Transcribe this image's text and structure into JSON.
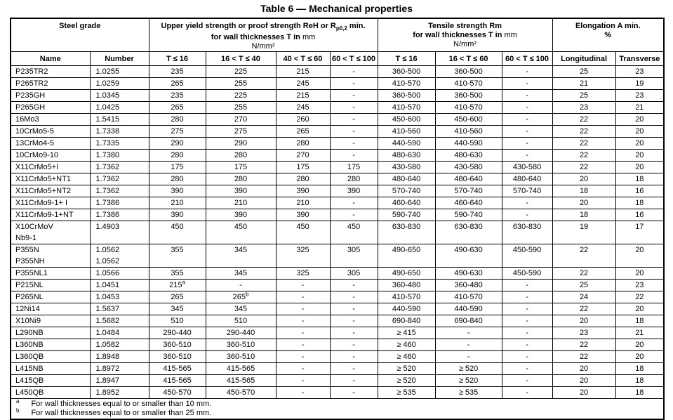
{
  "title": "Table 6 — Mechanical properties",
  "colors": {
    "border": "#000000",
    "text": "#000000",
    "background": "#ffffff"
  },
  "table": {
    "header": {
      "steel_grade": "Steel grade",
      "yield": {
        "line1_pre": "Upper yield strength or proof strength ReH or R",
        "line1_sub": "p0,2",
        "line1_post": " min.",
        "line2_main": "for wall thicknesses T in ",
        "line2_unit": "mm",
        "line3": "N/mm²"
      },
      "tensile": {
        "line1": "Tensile strength Rm",
        "line2_main": "for wall thicknesses T in ",
        "line2_unit": "mm",
        "line3": "N/mm²"
      },
      "elongation": {
        "line1": "Elongation A min.",
        "line2": "%"
      },
      "subheaders": [
        "Name",
        "Number",
        "T ≤ 16",
        "16 < T ≤ 40",
        "40 < T ≤ 60",
        "60 < T ≤ 100",
        "T ≤ 16",
        "16 < T ≤ 60",
        "60 < T ≤ 100",
        "Longitudinal",
        "Transverse"
      ]
    },
    "rows": [
      {
        "name": "P235TR2",
        "number": "1.0255",
        "cells": [
          "235",
          "225",
          "215",
          "-",
          "360-500",
          "360-500",
          "-",
          "25",
          "23"
        ]
      },
      {
        "name": "P265TR2",
        "number": "1.0259",
        "cells": [
          "265",
          "255",
          "245",
          "-",
          "410-570",
          "410-570",
          "-",
          "21",
          "19"
        ]
      },
      {
        "name": "P235GH",
        "number": "1.0345",
        "cells": [
          "235",
          "225",
          "215",
          "-",
          "360-500",
          "360-500",
          "-",
          "25",
          "23"
        ]
      },
      {
        "name": "P265GH",
        "number": "1.0425",
        "cells": [
          "265",
          "255",
          "245",
          "-",
          "410-570",
          "410-570",
          "-",
          "23",
          "21"
        ]
      },
      {
        "name": "16Mo3",
        "number": "1.5415",
        "cells": [
          "280",
          "270",
          "260",
          "-",
          "450-600",
          "450-600",
          "-",
          "22",
          "20"
        ]
      },
      {
        "name": "10CrMo5-5",
        "number": "1.7338",
        "cells": [
          "275",
          "275",
          "265",
          "-",
          "410-560",
          "410-560",
          "-",
          "22",
          "20"
        ]
      },
      {
        "name": "13CrMo4-5",
        "number": "1.7335",
        "cells": [
          "290",
          "290",
          "280",
          "-",
          "440-590",
          "440-590",
          "-",
          "22",
          "20"
        ]
      },
      {
        "name": "10CrMo9-10",
        "number": "1.7380",
        "cells": [
          "280",
          "280",
          "270",
          "-",
          "480-630",
          "480-630",
          "-",
          "22",
          "20"
        ]
      },
      {
        "name": "X11CrMo5+I",
        "number": "1.7362",
        "cells": [
          "175",
          "175",
          "175",
          "175",
          "430-580",
          "430-580",
          "430-580",
          "22",
          "20"
        ]
      },
      {
        "name": "X11CrMo5+NT1",
        "number": "1.7362",
        "cells": [
          "280",
          "280",
          "280",
          "280",
          "480-640",
          "480-640",
          "480-640",
          "20",
          "18"
        ]
      },
      {
        "name": "X11CrMo5+NT2",
        "number": "1.7362",
        "cells": [
          "390",
          "390",
          "390",
          "390",
          "570-740",
          "570-740",
          "570-740",
          "18",
          "16"
        ]
      },
      {
        "name": "X11CrMo9-1+ I",
        "number": "1.7386",
        "cells": [
          "210",
          "210",
          "210",
          "-",
          "460-640",
          "460-640",
          "-",
          "20",
          "18"
        ]
      },
      {
        "name": "X11CrMo9-1+NT",
        "number": "1.7386",
        "cells": [
          "390",
          "390",
          "390",
          "-",
          "590-740",
          "590-740",
          "-",
          "18",
          "16"
        ]
      },
      {
        "name": [
          "X10CrMoV",
          "Nb9-1"
        ],
        "number": "1.4903",
        "tall": true,
        "cells": [
          "450",
          "450",
          "450",
          "450",
          "630-830",
          "630-830",
          "630-830",
          "19",
          "17"
        ]
      },
      {
        "name": [
          "P355N",
          "P355NH"
        ],
        "number": [
          "1.0562",
          "1.0562"
        ],
        "tall": true,
        "cells": [
          "355",
          "345",
          "325",
          "305",
          "490-650",
          "490-630",
          "450-590",
          "22",
          "20"
        ]
      },
      {
        "name": "P355NL1",
        "number": "1.0566",
        "cells": [
          "355",
          "345",
          "325",
          "305",
          "490-650",
          "490-630",
          "450-590",
          "22",
          "20"
        ]
      },
      {
        "name": "P215NL",
        "number": "1.0451",
        "cells": [
          {
            "v": "215",
            "sup": "a"
          },
          "-",
          "-",
          "-",
          "360-480",
          "360-480",
          "-",
          "25",
          "23"
        ]
      },
      {
        "name": "P265NL",
        "number": "1.0453",
        "cells": [
          "265",
          {
            "v": "265",
            "sup": "b"
          },
          "-",
          "-",
          "410-570",
          "410-570",
          "-",
          "24",
          "22"
        ]
      },
      {
        "name": "12Ni14",
        "number": "1.5637",
        "cells": [
          "345",
          "345",
          "-",
          "-",
          "440-590",
          "440-590",
          "-",
          "22",
          "20"
        ]
      },
      {
        "name": "X10Ni9",
        "number": "1.5682",
        "cells": [
          "510",
          "510",
          "-",
          "-",
          "690-840",
          "690-840",
          "-",
          "20",
          "18"
        ]
      },
      {
        "name": "L290NB",
        "number": "1.0484",
        "cells": [
          "290-440",
          "290-440",
          "-",
          "-",
          "≥ 415",
          "-",
          "-",
          "23",
          "21"
        ]
      },
      {
        "name": "L360NB",
        "number": "1.0582",
        "cells": [
          "360-510",
          "360-510",
          "-",
          "-",
          "≥ 460",
          "-",
          "-",
          "22",
          "20"
        ]
      },
      {
        "name": "L360QB",
        "number": "1.8948",
        "cells": [
          "360-510",
          "360-510",
          "-",
          "-",
          "≥ 460",
          "-",
          "-",
          "22",
          "20"
        ]
      },
      {
        "name": "L415NB",
        "number": "1.8972",
        "cells": [
          "415-565",
          "415-565",
          "-",
          "-",
          "≥ 520",
          "≥ 520",
          "-",
          "20",
          "18"
        ]
      },
      {
        "name": "L415QB",
        "number": "1.8947",
        "cells": [
          "415-565",
          "415-565",
          "-",
          "-",
          "≥ 520",
          "≥ 520",
          "-",
          "20",
          "18"
        ]
      },
      {
        "name": "L450QB",
        "number": "1.8952",
        "cells": [
          "450-570",
          "450-570",
          "-",
          "-",
          "≥ 535",
          "≥ 535",
          "-",
          "20",
          "18"
        ]
      }
    ],
    "footnotes": [
      {
        "marker": "a",
        "text": "For wall thicknesses equal to or smaller than 10 mm."
      },
      {
        "marker": "b",
        "text": "For wall thicknesses equal to or smaller than 25 mm."
      }
    ]
  }
}
